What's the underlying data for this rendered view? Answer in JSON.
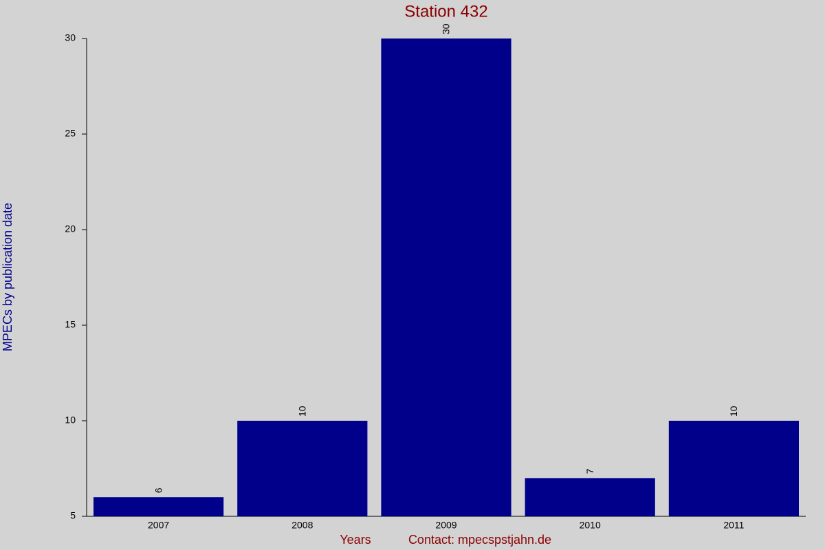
{
  "chart_data": {
    "type": "bar",
    "title": "Station 432",
    "ylabel": "MPECs by publication date",
    "xlabel": "Years",
    "contact": "Contact: mpecspstjahn.de",
    "categories": [
      "2007",
      "2008",
      "2009",
      "2010",
      "2011"
    ],
    "values": [
      6,
      10,
      30,
      7,
      10
    ],
    "color": "#00008b",
    "ylim": [
      5,
      30
    ],
    "yticks": [
      5,
      10,
      15,
      20,
      25,
      30
    ]
  }
}
